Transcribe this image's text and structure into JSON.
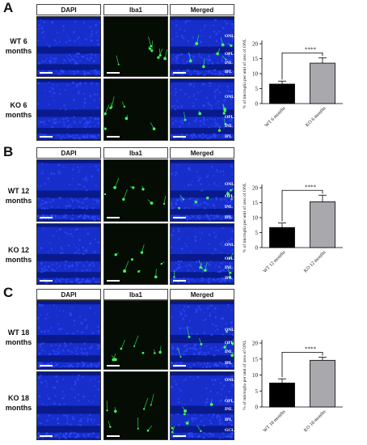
{
  "column_headers": [
    "DAPI",
    "Iba1",
    "Merged"
  ],
  "colors": {
    "dapi_blue": "#1a33d6",
    "dapi_dark": "#081a8c",
    "iba1_bg": "#040c04",
    "microglia_green": "#3cff5a",
    "wt_bar": "#000000",
    "ko_bar": "#a9a9ad"
  },
  "panels": [
    {
      "letter": "A",
      "rows": [
        {
          "label_line1": "WT 6",
          "label_line2": "months",
          "layers": [
            "ONL",
            "OPL",
            "INL",
            "IPL"
          ]
        },
        {
          "label_line1": "KO 6",
          "label_line2": "months",
          "layers": [
            "ONL",
            "OPL",
            "INL",
            "IPL"
          ]
        }
      ]
    },
    {
      "letter": "B",
      "rows": [
        {
          "label_line1": "WT 12",
          "label_line2": "months",
          "layers": [
            "ONL",
            "OPL",
            "INL",
            "IPL"
          ]
        },
        {
          "label_line1": "KO 12",
          "label_line2": "months",
          "layers": [
            "ONL",
            "OPL",
            "INL",
            "IPL"
          ]
        }
      ]
    },
    {
      "letter": "C",
      "rows": [
        {
          "label_line1": "WT 18",
          "label_line2": "months",
          "layers": [
            "ONL",
            "OPL",
            "INL",
            "IPL"
          ]
        },
        {
          "label_line1": "KO 18",
          "label_line2": "months",
          "layers": [
            "ONL",
            "OPL",
            "INL",
            "IPL",
            "GCL"
          ]
        }
      ]
    }
  ],
  "chart_data": [
    {
      "type": "bar",
      "categories": [
        "WT 6 months",
        "KO 6 months"
      ],
      "values": [
        6.5,
        13.5
      ],
      "errors": [
        1.0,
        1.8
      ],
      "ylabel": "% of microglia per unit of area of ONL",
      "ylim": [
        0,
        20
      ],
      "yticks": [
        0,
        5,
        10,
        15,
        20
      ],
      "significance": "****"
    },
    {
      "type": "bar",
      "categories": [
        "WT 12 months",
        "KO 12 months"
      ],
      "values": [
        6.7,
        15.3
      ],
      "errors": [
        1.5,
        2.2
      ],
      "ylabel": "% of microglia per unit of area of ONL",
      "ylim": [
        0,
        20
      ],
      "yticks": [
        0,
        5,
        10,
        15,
        20
      ],
      "significance": "****"
    },
    {
      "type": "bar",
      "categories": [
        "WT 18 months",
        "KO 18 months"
      ],
      "values": [
        7.5,
        14.6
      ],
      "errors": [
        1.3,
        1.0
      ],
      "ylabel": "% of microglia per unit of area of ONL",
      "ylim": [
        0,
        20
      ],
      "yticks": [
        0,
        5,
        10,
        15,
        20
      ],
      "significance": "****"
    }
  ]
}
